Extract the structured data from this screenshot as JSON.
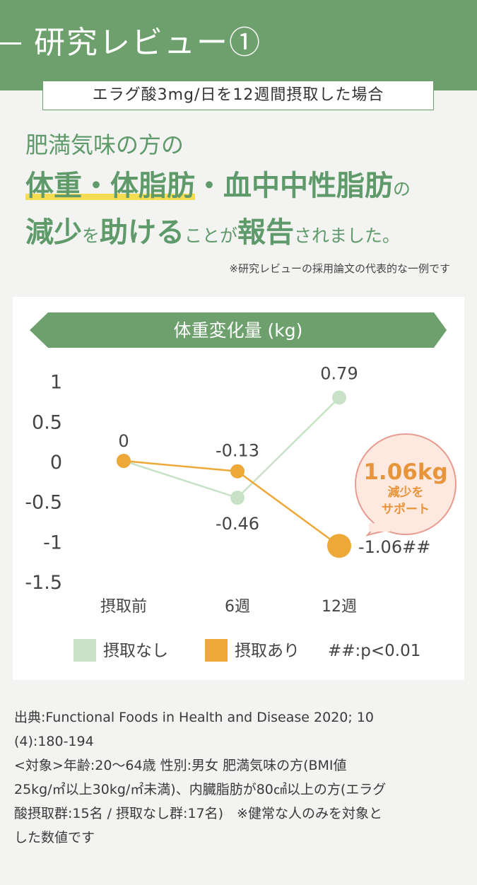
{
  "header": {
    "title": "研究レビュー①"
  },
  "subtitle": "エラグ酸3mg/日を12週間摂取した場合",
  "headline": {
    "line1": "肥満気味の方の",
    "line2_a": "体重・体脂肪",
    "line2_b": "・血中中性脂肪",
    "line2_c": "の",
    "line3_a": "減少",
    "line3_b": "を",
    "line3_c": "助ける",
    "line3_d": "ことが",
    "line3_e": "報告",
    "line3_f": "されました。"
  },
  "note": "※研究レビューの採用論文の代表的な一例です",
  "chart_data": {
    "type": "line",
    "title": "体重変化量 (kg)",
    "categories": [
      "摂取前",
      "6週",
      "12週"
    ],
    "series": [
      {
        "name": "摂取なし",
        "values": [
          0,
          -0.46,
          0.79
        ],
        "color": "#c8e2c8"
      },
      {
        "name": "摂取あり",
        "values": [
          0,
          -0.13,
          -1.06
        ],
        "color": "#eea838"
      }
    ],
    "data_labels": [
      "0",
      "-0.13",
      "-0.46",
      "0.79",
      "-1.06##"
    ],
    "y_ticks": [
      "1",
      "0.5",
      "0",
      "-0.5",
      "-1",
      "-1.5"
    ],
    "ylim": [
      -1.5,
      1
    ],
    "grid": false,
    "legend_position": "bottom",
    "legend_note": "##:p<0.01",
    "callout": {
      "value": "1.06kg",
      "line1": "減少を",
      "line2": "サポート"
    }
  },
  "source_lines": [
    "出典:Functional Foods in Health and Disease 2020; 10",
    "(4):180-194",
    "<対象>年齢:20～64歳 性別:男女 肥満気味の方(BMI値",
    "25kg/㎡以上30kg/㎡未満)、内臓脂肪が80㎠以上の方(エラグ",
    "酸摂取群:15名 / 摂取なし群:17名)　※健常な人のみを対象と",
    "した数値です"
  ]
}
